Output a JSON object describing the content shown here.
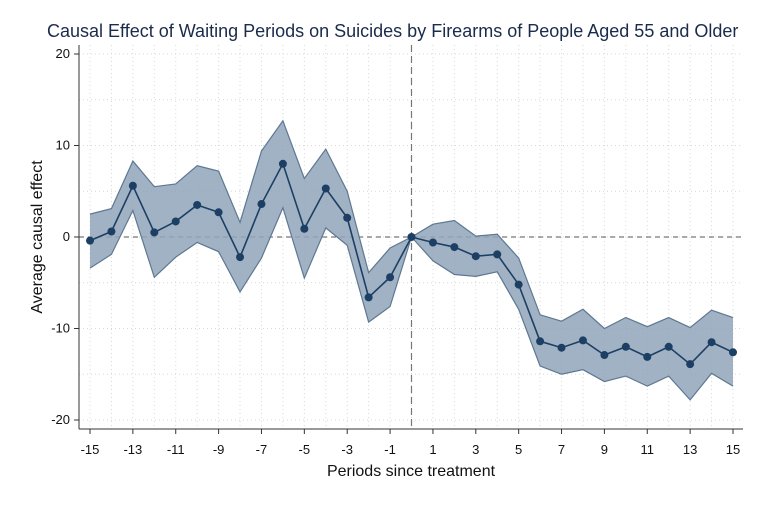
{
  "chart_data": {
    "type": "line",
    "title": "Causal Effect of Waiting Periods on Suicides by Firearms of People Aged 55 and Older",
    "xlabel": "Periods since treatment",
    "ylabel": "Average causal effect",
    "xlim": [
      -15.5,
      15.5
    ],
    "ylim": [
      -21,
      21
    ],
    "x_ticks": [
      -15,
      -13,
      -11,
      -9,
      -7,
      -5,
      -3,
      -1,
      1,
      3,
      5,
      7,
      9,
      11,
      13,
      15
    ],
    "y_ticks": [
      20,
      10,
      0,
      -10,
      -20
    ],
    "x_tick_labels": [
      "-15",
      "-13",
      "-11",
      "-9",
      "-7",
      "-5",
      "-3",
      "-1",
      "1",
      "3",
      "5",
      "7",
      "9",
      "11",
      "13",
      "15"
    ],
    "y_tick_labels": [
      "20",
      "10",
      "0",
      "-10",
      "-20"
    ],
    "grid": true,
    "reference_lines": {
      "x": 0,
      "y": 0
    },
    "series": [
      {
        "name": "Average causal effect",
        "x": [
          -15,
          -14,
          -13,
          -12,
          -11,
          -10,
          -9,
          -8,
          -7,
          -6,
          -5,
          -4,
          -3,
          -2,
          -1,
          0,
          1,
          2,
          3,
          4,
          5,
          6,
          7,
          8,
          9,
          10,
          11,
          12,
          13,
          14,
          15
        ],
        "values": [
          -0.4,
          0.6,
          5.6,
          0.5,
          1.7,
          3.5,
          2.7,
          -2.2,
          3.6,
          8.0,
          0.9,
          5.3,
          2.1,
          -6.6,
          -4.4,
          0.0,
          -0.6,
          -1.1,
          -2.1,
          -1.9,
          -5.2,
          -11.4,
          -12.1,
          -11.3,
          -12.9,
          -12.0,
          -13.1,
          -12.0,
          -13.9,
          -11.5,
          -12.6
        ],
        "ci_lower": [
          -3.4,
          -1.9,
          2.9,
          -4.4,
          -2.2,
          -0.6,
          -1.6,
          -6.0,
          -2.3,
          3.2,
          -4.5,
          1.0,
          -0.9,
          -9.3,
          -7.6,
          0.0,
          -2.6,
          -4.1,
          -4.3,
          -3.8,
          -7.9,
          -14.1,
          -15.0,
          -14.5,
          -15.8,
          -15.2,
          -16.3,
          -15.2,
          -17.8,
          -14.9,
          -16.3
        ],
        "ci_upper": [
          2.5,
          3.1,
          8.3,
          5.5,
          5.8,
          7.8,
          7.2,
          1.6,
          9.4,
          12.7,
          6.4,
          9.6,
          5.0,
          -3.9,
          -1.2,
          0.0,
          1.4,
          1.8,
          0.1,
          0.3,
          -2.3,
          -8.5,
          -9.2,
          -7.9,
          -10.0,
          -8.8,
          -9.8,
          -8.8,
          -9.9,
          -8.0,
          -8.8
        ]
      }
    ],
    "colors": {
      "line": "#1d3f64",
      "band_fill": "#8fa5ba",
      "band_edge": "#5e7891",
      "grid": "#d8d8d8",
      "ref_line": "#777777",
      "title": "#1a2b4c",
      "axis": "#333333"
    }
  }
}
